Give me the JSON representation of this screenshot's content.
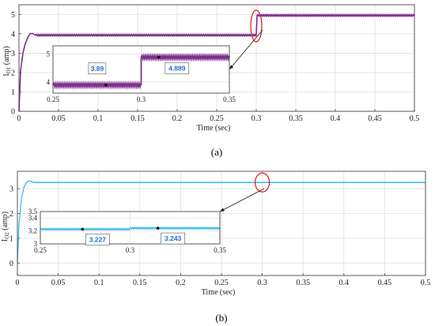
{
  "chart_data": [
    {
      "type": "line",
      "caption": "(a)",
      "xlabel": "Time (sec)",
      "ylabel": "I",
      "ylabel_sub": "O1",
      "ylabel_unit": " (amp)",
      "xlim": [
        0,
        0.5
      ],
      "ylim": [
        0,
        5.5
      ],
      "xticks": [
        "0",
        "0.05",
        "0.1",
        "0.15",
        "0.2",
        "0.25",
        "0.3",
        "0.35",
        "0.4",
        "0.45",
        "0.5"
      ],
      "yticks": [
        "0",
        "1",
        "2",
        "3",
        "4",
        "5"
      ],
      "grid": true,
      "series": [
        {
          "color": "#7e2f8e",
          "x": [
            0,
            0.002,
            0.005,
            0.008,
            0.011,
            0.014,
            0.017,
            0.021,
            0.3,
            0.301,
            0.5
          ],
          "y": [
            0,
            2.1,
            3.0,
            3.5,
            3.8,
            4.0,
            4.02,
            3.93,
            3.93,
            4.95,
            4.95
          ],
          "ripple": 0.05
        }
      ],
      "inset": {
        "xlim": [
          0.25,
          0.35
        ],
        "ylim": [
          3.6,
          5.3
        ],
        "xticks": [
          "0.25",
          "0.3",
          "0.35"
        ],
        "yticks": [
          "4",
          "5"
        ],
        "series": [
          {
            "color": "#7e2f8e",
            "x": [
              0.25,
              0.3,
              0.3,
              0.35
            ],
            "y": [
              3.89,
              3.89,
              4.889,
              4.889
            ],
            "ripple": 0.06
          }
        ],
        "datatips": [
          {
            "x": 0.28,
            "y": 3.89,
            "label": "3.89"
          },
          {
            "x": 0.31,
            "y": 4.889,
            "label": "4.889"
          }
        ]
      },
      "highlight": {
        "x": 0.3,
        "y": 4.4
      }
    },
    {
      "type": "line",
      "caption": "(b)",
      "xlabel": "Time (sec)",
      "ylabel": "I",
      "ylabel_sub": "O2",
      "ylabel_unit": " (amp)",
      "xlim": [
        0,
        0.5
      ],
      "ylim": [
        -0.5,
        3.7
      ],
      "xticks": [
        "0",
        "0.05",
        "0.1",
        "0.15",
        "0.2",
        "0.25",
        "0.3",
        "0.35",
        "0.4",
        "0.45",
        "0.5"
      ],
      "yticks": [
        "0",
        "1",
        "2",
        "3"
      ],
      "grid": true,
      "series": [
        {
          "color": "#1fb3e5",
          "x": [
            0,
            0.002,
            0.005,
            0.008,
            0.011,
            0.015,
            0.02,
            0.5
          ],
          "y": [
            0,
            1.6,
            2.6,
            3.05,
            3.25,
            3.32,
            3.25,
            3.25
          ],
          "ripple": 0.015
        }
      ],
      "inset": {
        "xlim": [
          0.25,
          0.35
        ],
        "ylim": [
          3.0,
          3.5
        ],
        "xticks": [
          "0.25",
          "0.3",
          "0.35"
        ],
        "yticks": [
          "3",
          "3.2",
          "3.4",
          "3.5"
        ],
        "series": [
          {
            "color": "#1fb3e5",
            "x": [
              0.25,
              0.3,
              0.3,
              0.35
            ],
            "y": [
              3.227,
              3.227,
              3.243,
              3.243
            ],
            "ripple": 0.012
          }
        ],
        "datatips": [
          {
            "x": 0.2735,
            "y": 3.227,
            "label": "3.227"
          },
          {
            "x": 0.3155,
            "y": 3.243,
            "label": "3.243"
          }
        ]
      },
      "highlight": {
        "x": 0.3,
        "y": 3.25
      }
    }
  ]
}
